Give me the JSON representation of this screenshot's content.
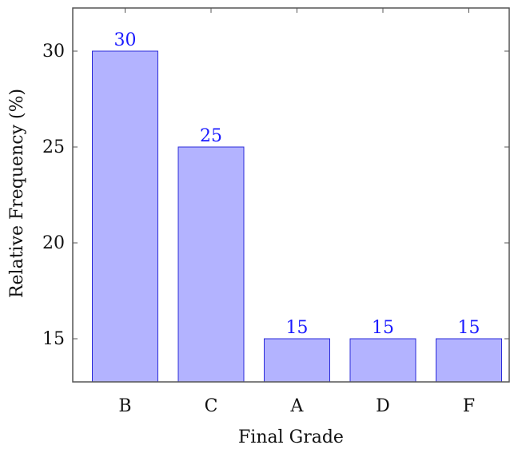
{
  "chart_data": {
    "type": "bar",
    "categories": [
      "B",
      "C",
      "A",
      "D",
      "F"
    ],
    "values": [
      30,
      25,
      15,
      15,
      15
    ],
    "data_labels": [
      "30",
      "25",
      "15",
      "15",
      "15"
    ],
    "title": "",
    "xlabel": "Final Grade",
    "ylabel": "Relative Frequency (%)",
    "ylim": [
      12.75,
      32.25
    ],
    "yticks": [
      15,
      20,
      25,
      30
    ],
    "ytick_labels": [
      "15",
      "20",
      "25",
      "30"
    ],
    "grid": false,
    "legend": "none",
    "colors": {
      "bar_fill": "#b3b3ff",
      "bar_stroke": "#2b2bd9",
      "label": "#1a1aff",
      "axis": "#555555"
    }
  }
}
